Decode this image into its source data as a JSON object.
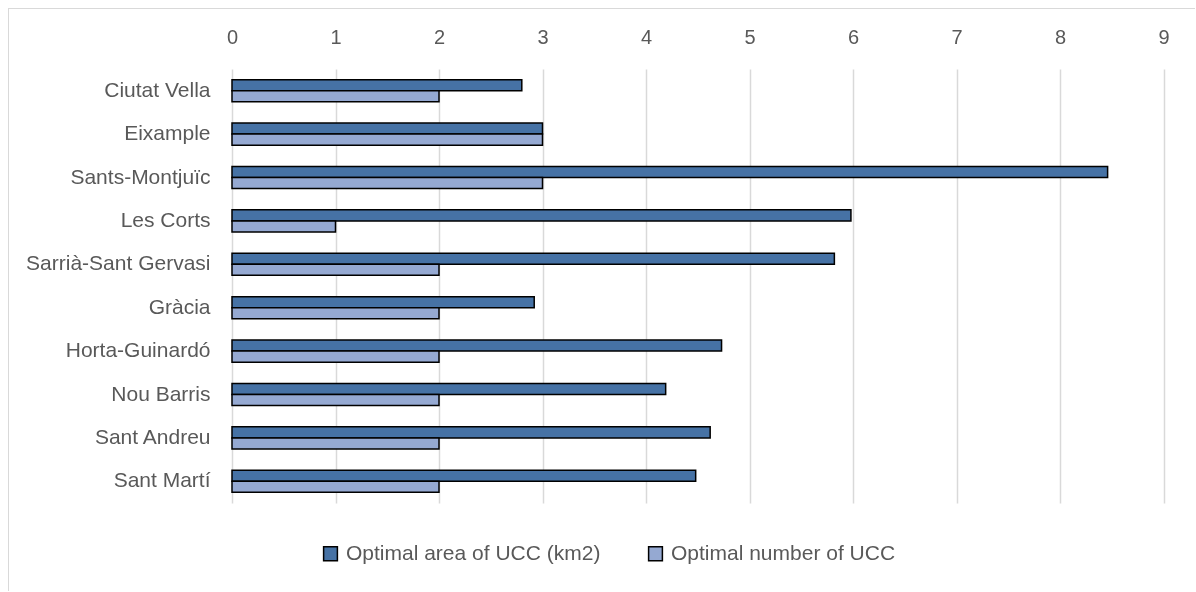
{
  "chart_data": {
    "type": "bar",
    "orientation": "horizontal",
    "categories": [
      "Ciutat Vella",
      "Eixample",
      "Sants-Montjuïc",
      "Les Corts",
      "Sarrià-Sant Gervasi",
      "Gràcia",
      "Horta-Guinardó",
      "Nou Barris",
      "Sant Andreu",
      "Sant Martí"
    ],
    "series": [
      {
        "name": "Optimal area of UCC (km2)",
        "color": "#4672a5",
        "values": [
          2.8,
          3,
          8.46,
          5.98,
          5.82,
          2.92,
          4.73,
          4.19,
          4.62,
          4.48
        ]
      },
      {
        "name": "Optimal number of UCC",
        "color": "#95a9d2",
        "values": [
          2,
          3,
          3,
          1,
          2,
          2,
          2,
          2,
          2,
          2
        ]
      }
    ],
    "xlim": [
      0,
      9
    ],
    "xticks": [
      0,
      1,
      2,
      3,
      4,
      5,
      6,
      7,
      8,
      9
    ],
    "grid": "x",
    "legend": "bottom"
  }
}
